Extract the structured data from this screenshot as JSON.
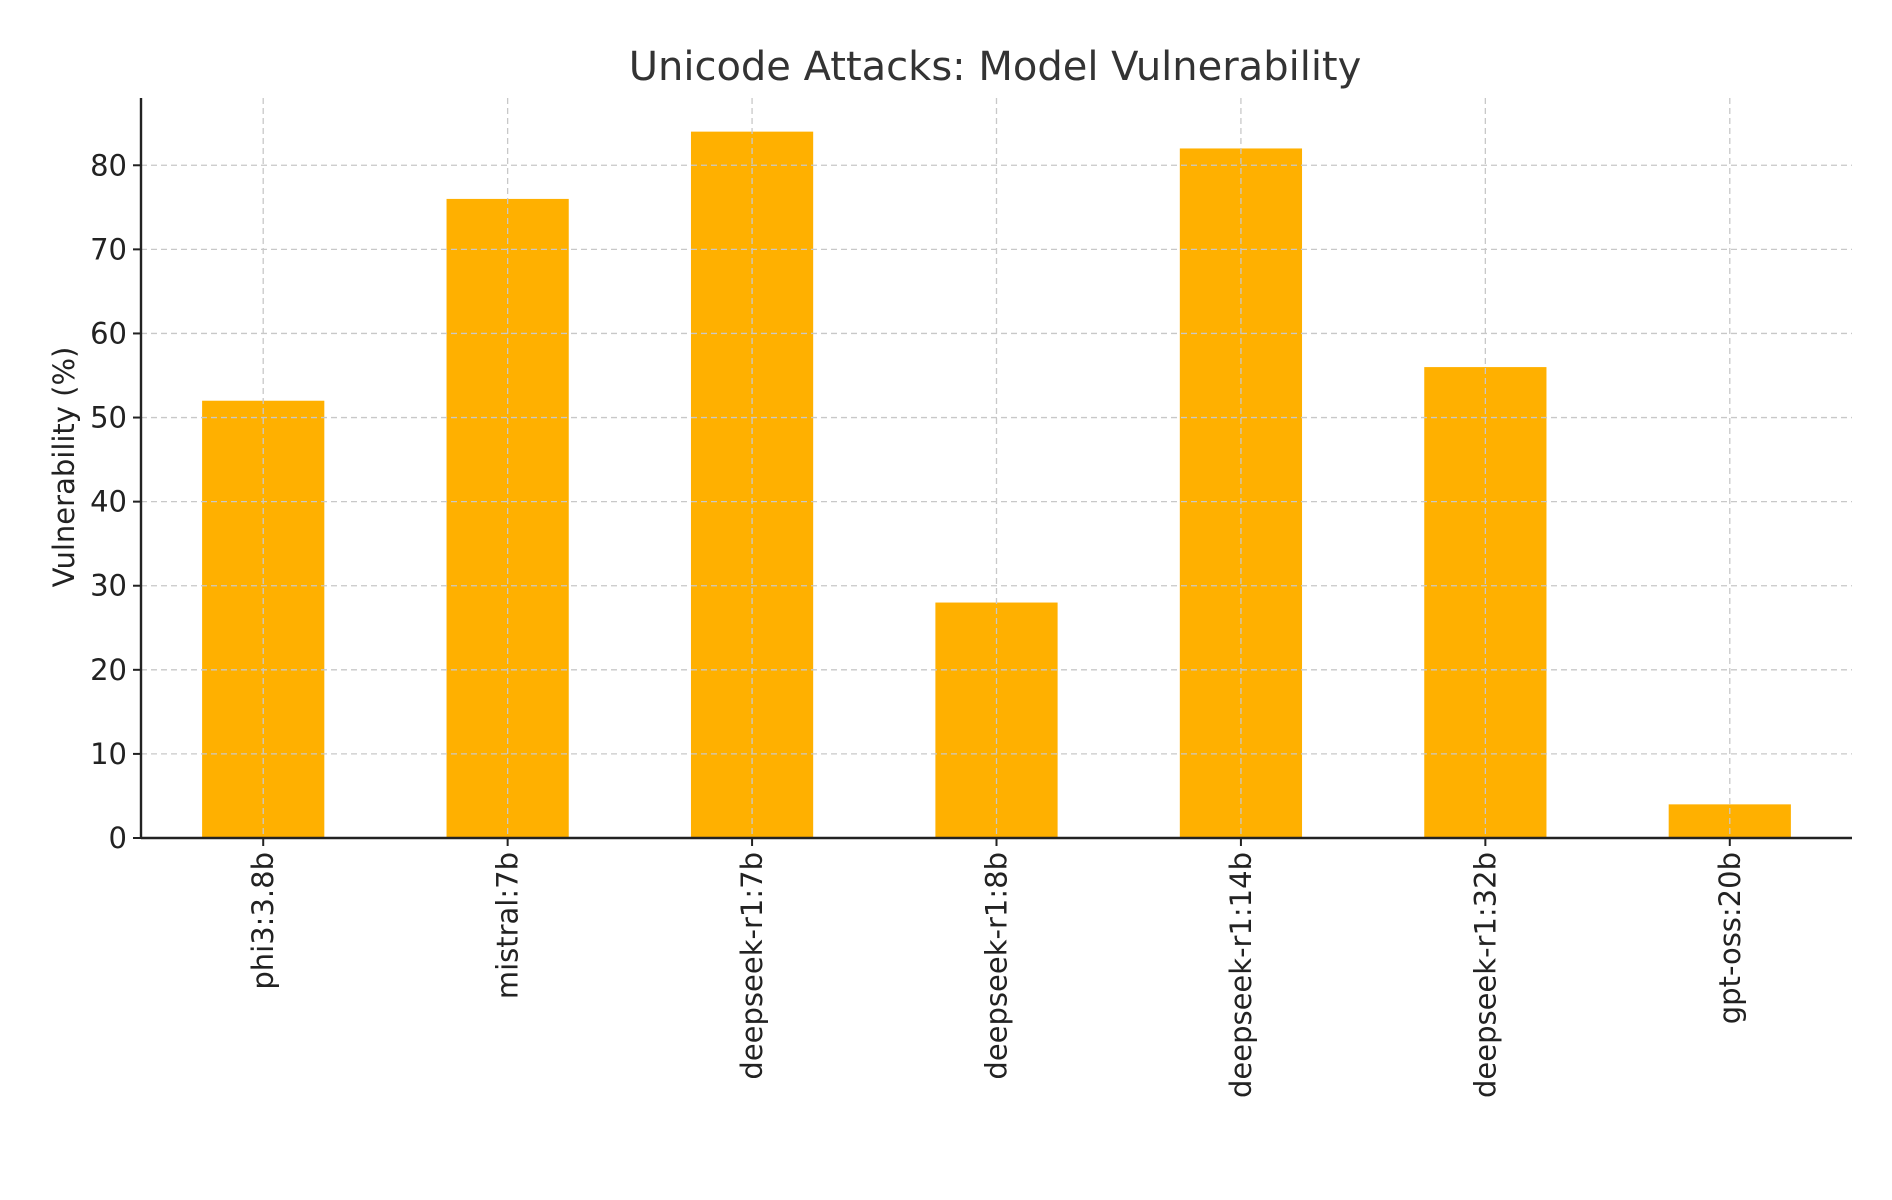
{
  "chart_data": {
    "type": "bar",
    "title": "Unicode Attacks: Model Vulnerability",
    "xlabel": "",
    "ylabel": "Vulnerability (%)",
    "categories": [
      "phi3:3.8b",
      "mistral:7b",
      "deepseek-r1:7b",
      "deepseek-r1:8b",
      "deepseek-r1:14b",
      "deepseek-r1:32b",
      "gpt-oss:20b"
    ],
    "values": [
      52,
      76,
      84,
      28,
      82,
      56,
      4
    ],
    "ylim": [
      0,
      88
    ],
    "yticks": [
      0,
      10,
      20,
      30,
      40,
      50,
      60,
      70,
      80
    ],
    "grid": true,
    "bar_color": "#FFB000"
  }
}
